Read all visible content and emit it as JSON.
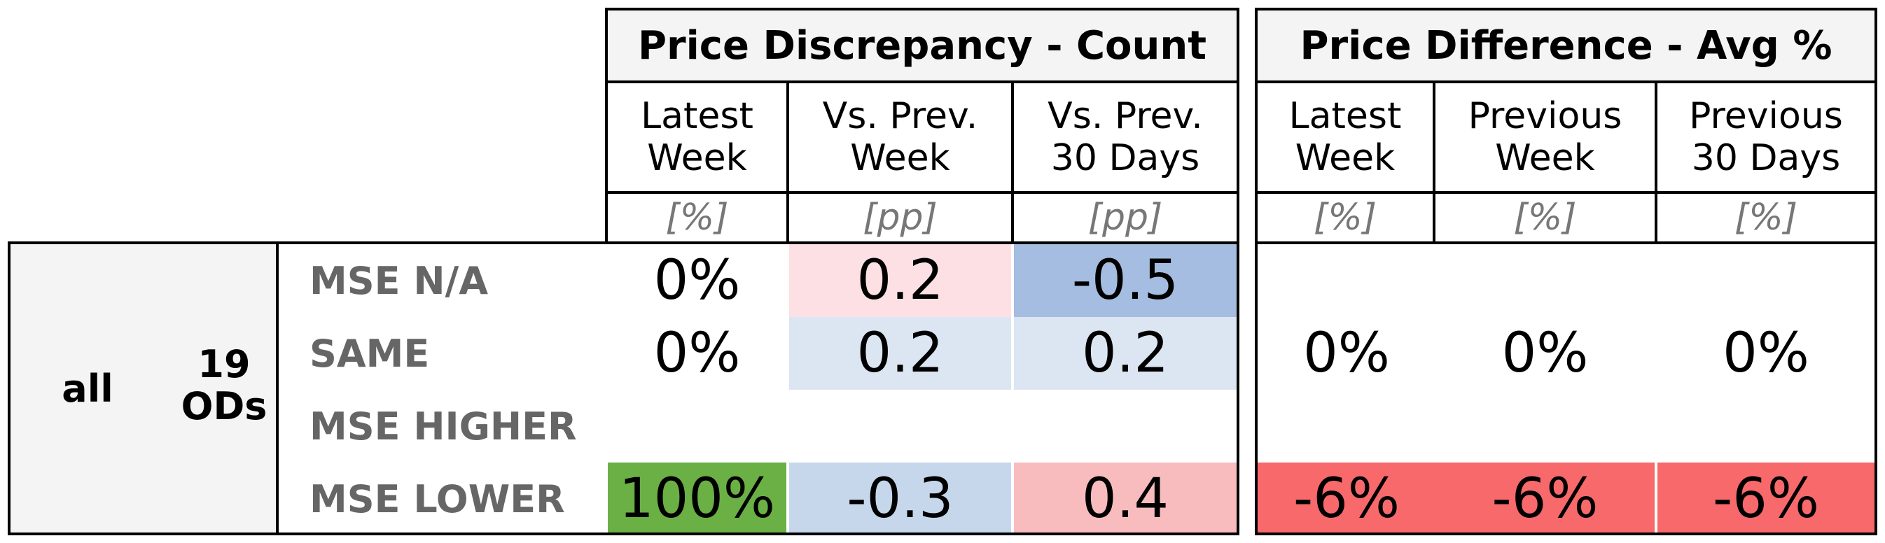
{
  "group_count": {
    "title": "Price Discrepancy - Count",
    "columns": [
      {
        "label": "Latest\nWeek",
        "unit": "[%]"
      },
      {
        "label": "Vs. Prev.\nWeek",
        "unit": "[pp]"
      },
      {
        "label": "Vs. Prev.\n30 Days",
        "unit": "[pp]"
      }
    ]
  },
  "group_avg": {
    "title": "Price Difference - Avg %",
    "columns": [
      {
        "label": "Latest\nWeek",
        "unit": "[%]"
      },
      {
        "label": "Previous\nWeek",
        "unit": "[%]"
      },
      {
        "label": "Previous\n30 Days",
        "unit": "[%]"
      }
    ]
  },
  "left": {
    "segment": "all",
    "od_count": "19",
    "od_label": "ODs"
  },
  "rows": [
    {
      "label": "MSE N/A",
      "count": [
        "0%",
        "0.2",
        "-0.5"
      ],
      "count_colors": [
        "#ffffff",
        "#fde0e3",
        "#a5bde0"
      ]
    },
    {
      "label": "SAME",
      "count": [
        "0%",
        "0.2",
        "0.2"
      ],
      "count_colors": [
        "#ffffff",
        "#dce6f2",
        "#dce6f2"
      ]
    },
    {
      "label": "MSE HIGHER",
      "count": [
        "",
        "",
        ""
      ],
      "count_colors": [
        "#ffffff",
        "#ffffff",
        "#ffffff"
      ]
    },
    {
      "label": "MSE LOWER",
      "count": [
        "100%",
        "-0.3",
        "0.4"
      ],
      "count_colors": [
        "#6ab045",
        "#c6d7ec",
        "#f9bcbe"
      ]
    }
  ],
  "avg_rows": [
    {
      "values": [
        "",
        "",
        ""
      ],
      "colors": [
        "#ffffff",
        "#ffffff",
        "#ffffff"
      ]
    },
    {
      "values": [
        "0%",
        "0%",
        "0%"
      ],
      "colors": [
        "#ffffff",
        "#ffffff",
        "#ffffff"
      ]
    },
    {
      "values": [
        "",
        "",
        ""
      ],
      "colors": [
        "#ffffff",
        "#ffffff",
        "#ffffff"
      ]
    },
    {
      "values": [
        "-6%",
        "-6%",
        "-6%"
      ],
      "colors": [
        "#f8696b",
        "#f8696b",
        "#f8696b"
      ]
    }
  ]
}
